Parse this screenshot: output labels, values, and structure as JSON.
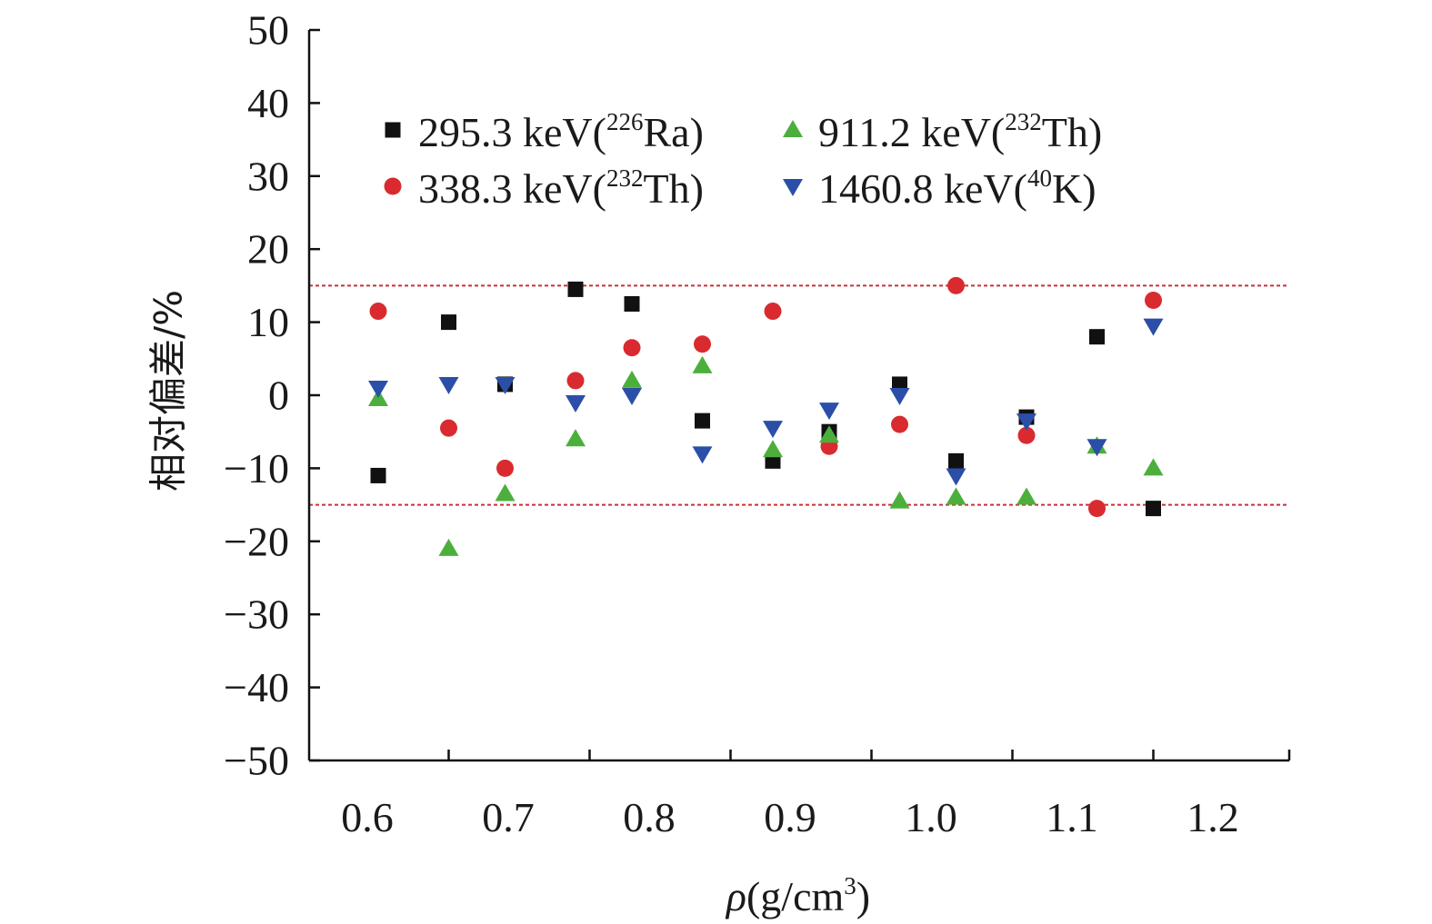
{
  "chart_data": {
    "type": "scatter",
    "title": "",
    "xlabel": {
      "prefix": "ρ",
      "unit": "(g/cm",
      "sup": "3",
      "suffix": ")"
    },
    "ylabel": "相对偏差/%",
    "xlim": [
      0.55,
      1.25
    ],
    "ylim": [
      -50,
      50
    ],
    "xticks": [
      0.6,
      0.7,
      0.8,
      0.9,
      1.0,
      1.1,
      1.2
    ],
    "xtick_labels": [
      "0.6",
      "0.7",
      "0.8",
      "0.9",
      "1.0",
      "1.1",
      "1.2"
    ],
    "yticks": [
      -50,
      -40,
      -30,
      -20,
      -10,
      0,
      10,
      20,
      30,
      40,
      50
    ],
    "ytick_labels": [
      "−50",
      "−40",
      "−30",
      "−20",
      "−10",
      "0",
      "10",
      "20",
      "30",
      "40",
      "50"
    ],
    "reference_lines": [
      15,
      -15
    ],
    "reference_line_color": "#c8323a",
    "legend_position": "top-left",
    "series": [
      {
        "name": "295.3 keV(226Ra)",
        "label_main": "295.3 keV(",
        "label_sup": "226",
        "label_end": "Ra)",
        "marker": "square",
        "color": "#111111",
        "x": [
          0.6,
          0.65,
          0.69,
          0.74,
          0.78,
          0.83,
          0.88,
          0.92,
          0.97,
          1.01,
          1.06,
          1.11,
          1.15
        ],
        "y": [
          -11,
          10,
          1.5,
          14.5,
          12.5,
          -3.5,
          -9,
          -5,
          1.5,
          -9,
          -3,
          8,
          -15.5
        ]
      },
      {
        "name": "338.3 keV(232Th)",
        "label_main": "338.3 keV(",
        "label_sup": "232",
        "label_end": "Th)",
        "marker": "circle",
        "color": "#d92b2f",
        "x": [
          0.6,
          0.65,
          0.69,
          0.74,
          0.78,
          0.83,
          0.88,
          0.92,
          0.97,
          1.01,
          1.06,
          1.11,
          1.15
        ],
        "y": [
          11.5,
          -4.5,
          -10,
          2,
          6.5,
          7,
          11.5,
          -7,
          -4,
          15,
          -5.5,
          -15.5,
          13
        ]
      },
      {
        "name": "911.2 keV(232Th)",
        "label_main": "911.2 keV(",
        "label_sup": "232",
        "label_end": "Th)",
        "marker": "triangle-up",
        "color": "#4caf3c",
        "x": [
          0.6,
          0.65,
          0.69,
          0.74,
          0.78,
          0.83,
          0.88,
          0.92,
          0.97,
          1.01,
          1.06,
          1.11,
          1.15
        ],
        "y": [
          -0.5,
          -21,
          -13.5,
          -6,
          2,
          4,
          -7.5,
          -5.5,
          -14.5,
          -14,
          -14,
          -7,
          -10
        ]
      },
      {
        "name": "1460.8 keV(40K)",
        "label_main": "1460.8 keV(",
        "label_sup": "40",
        "label_end": "K)",
        "marker": "triangle-down",
        "color": "#2b4fa8",
        "x": [
          0.6,
          0.65,
          0.69,
          0.74,
          0.78,
          0.83,
          0.88,
          0.92,
          0.97,
          1.01,
          1.06,
          1.11,
          1.15
        ],
        "y": [
          1,
          1.5,
          1.5,
          -1,
          0,
          -8,
          -4.5,
          -2,
          0,
          -11,
          -3.5,
          -7,
          9.5
        ]
      }
    ]
  }
}
